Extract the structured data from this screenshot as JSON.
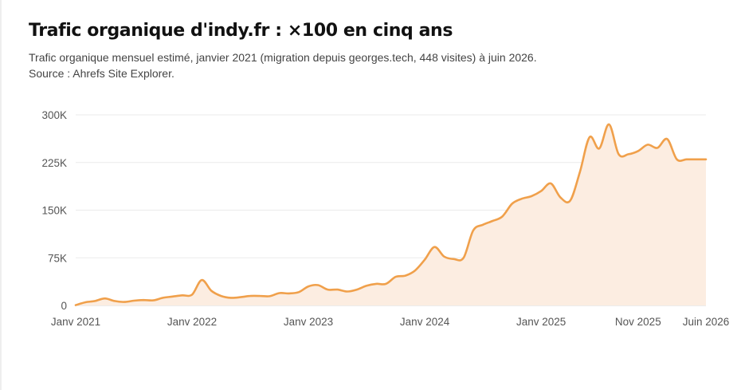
{
  "header": {
    "title": "Trafic organique d'indy.fr : ×100 en cinq ans",
    "subtitle_line1": "Trafic organique mensuel estimé, janvier 2021 (migration depuis georges.tech, 448 visites) à juin 2026.",
    "subtitle_line2": "Source : Ahrefs Site Explorer."
  },
  "colors": {
    "line": "#f0a04b",
    "area": "#fcede1",
    "grid": "#ebebeb",
    "baseline": "#d9d9d9",
    "text": "#555555"
  },
  "chart_data": {
    "type": "area",
    "title": "Trafic organique d'indy.fr : ×100 en cinq ans",
    "xlabel": "",
    "ylabel": "",
    "ylim": [
      0,
      300000
    ],
    "grid": true,
    "y_ticks": [
      {
        "value": 0,
        "label": "0"
      },
      {
        "value": 75000,
        "label": "75K"
      },
      {
        "value": 150000,
        "label": "150K"
      },
      {
        "value": 225000,
        "label": "225K"
      },
      {
        "value": 300000,
        "label": "300K"
      }
    ],
    "x_ticks": [
      {
        "month": 0,
        "label": "Janv 2021"
      },
      {
        "month": 12,
        "label": "Janv 2022"
      },
      {
        "month": 24,
        "label": "Janv 2023"
      },
      {
        "month": 36,
        "label": "Janv 2024"
      },
      {
        "month": 48,
        "label": "Janv 2025"
      },
      {
        "month": 58,
        "label": "Nov 2025"
      },
      {
        "month": 65,
        "label": "Juin 2026"
      }
    ],
    "x": [
      "2021-01",
      "2021-02",
      "2021-03",
      "2021-04",
      "2021-05",
      "2021-06",
      "2021-07",
      "2021-08",
      "2021-09",
      "2021-10",
      "2021-11",
      "2021-12",
      "2022-01",
      "2022-02",
      "2022-03",
      "2022-04",
      "2022-05",
      "2022-06",
      "2022-07",
      "2022-08",
      "2022-09",
      "2022-10",
      "2022-11",
      "2022-12",
      "2023-01",
      "2023-02",
      "2023-03",
      "2023-04",
      "2023-05",
      "2023-06",
      "2023-07",
      "2023-08",
      "2023-09",
      "2023-10",
      "2023-11",
      "2023-12",
      "2024-01",
      "2024-02",
      "2024-03",
      "2024-04",
      "2024-05",
      "2024-06",
      "2024-07",
      "2024-08",
      "2024-09",
      "2024-10",
      "2024-11",
      "2024-12",
      "2025-01",
      "2025-02",
      "2025-03",
      "2025-04",
      "2025-05",
      "2025-06",
      "2025-07",
      "2025-08",
      "2025-09",
      "2025-10",
      "2025-11",
      "2025-12",
      "2026-01",
      "2026-02",
      "2026-03",
      "2026-04",
      "2026-05",
      "2026-06"
    ],
    "series": [
      {
        "values": [
          448,
          5000,
          7000,
          11000,
          7000,
          5500,
          7500,
          8500,
          8000,
          12000,
          14000,
          16000,
          17000,
          40000,
          23000,
          15000,
          12000,
          13000,
          15000,
          15000,
          14500,
          19500,
          19000,
          21000,
          30000,
          32000,
          25000,
          25000,
          22000,
          25000,
          31000,
          34000,
          34000,
          45000,
          47000,
          55000,
          72000,
          92000,
          77000,
          73000,
          75000,
          118000,
          127000,
          133000,
          140000,
          160000,
          168000,
          172000,
          180000,
          192000,
          170000,
          165000,
          210000,
          265000,
          247000,
          285000,
          238000,
          238000,
          243000,
          253000,
          248000,
          262000,
          230000,
          230000,
          230000,
          230000
        ]
      }
    ]
  }
}
